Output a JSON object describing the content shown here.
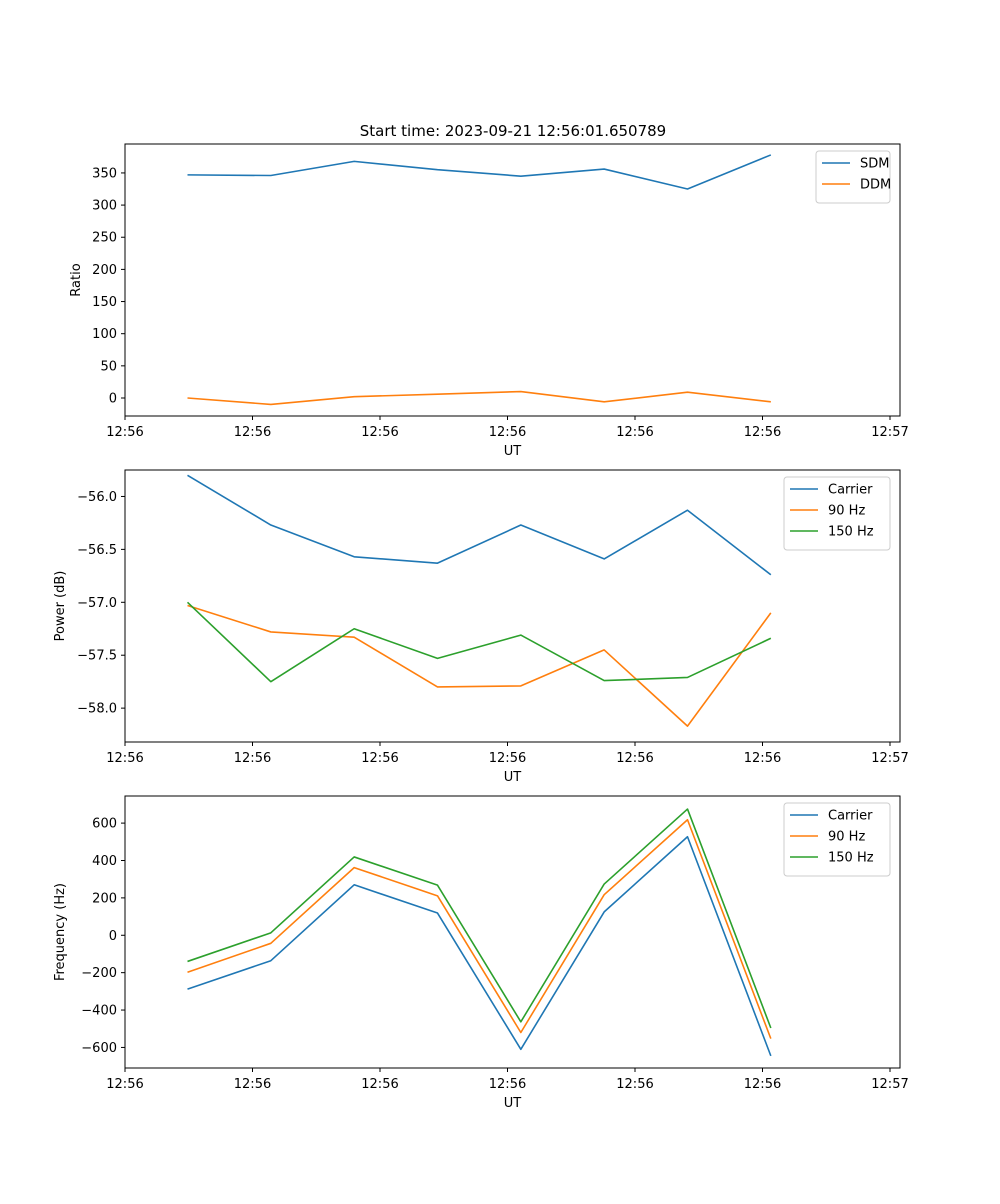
{
  "figure_title": "Start time: 2023-09-21 12:56:01.650789",
  "colors": {
    "blue": "#1f77b4",
    "orange": "#ff7f0e",
    "green": "#2ca02c"
  },
  "chart_data": [
    {
      "type": "line",
      "title": "Start time: 2023-09-21 12:56:01.650789",
      "xlabel": "UT",
      "ylabel": "Ratio",
      "x": [
        0,
        1,
        2,
        3,
        4,
        5,
        6,
        7
      ],
      "xlim": [
        -0.75,
        8.55
      ],
      "xticks": [
        -0.75,
        0.78,
        2.31,
        3.84,
        5.37,
        6.9,
        8.43
      ],
      "xtick_labels": [
        "12:56",
        "12:56",
        "12:56",
        "12:56",
        "12:56",
        "12:56",
        "12:57"
      ],
      "ylim": [
        -28,
        395
      ],
      "yticks": [
        0,
        50,
        100,
        150,
        200,
        250,
        300,
        350
      ],
      "ytick_labels": [
        "0",
        "50",
        "100",
        "150",
        "200",
        "250",
        "300",
        "350"
      ],
      "legend": "top-right",
      "series": [
        {
          "name": "SDM",
          "color": "#1f77b4",
          "values": [
            347,
            346,
            368,
            355,
            345,
            356,
            325,
            378
          ]
        },
        {
          "name": "DDM",
          "color": "#ff7f0e",
          "values": [
            0,
            -10,
            2,
            6,
            10,
            -6,
            9,
            -6
          ]
        }
      ]
    },
    {
      "type": "line",
      "title": "",
      "xlabel": "UT",
      "ylabel": "Power (dB)",
      "x": [
        0,
        1,
        2,
        3,
        4,
        5,
        6,
        7
      ],
      "xlim": [
        -0.75,
        8.55
      ],
      "xticks": [
        -0.75,
        0.78,
        2.31,
        3.84,
        5.37,
        6.9,
        8.43
      ],
      "xtick_labels": [
        "12:56",
        "12:56",
        "12:56",
        "12:56",
        "12:56",
        "12:56",
        "12:57"
      ],
      "ylim": [
        -58.32,
        -55.75
      ],
      "yticks": [
        -58.0,
        -57.5,
        -57.0,
        -56.5,
        -56.0
      ],
      "ytick_labels": [
        "−58.0",
        "−57.5",
        "−57.0",
        "−56.5",
        "−56.0"
      ],
      "legend": "top-right",
      "series": [
        {
          "name": "Carrier",
          "color": "#1f77b4",
          "values": [
            -55.8,
            -56.27,
            -56.57,
            -56.63,
            -56.27,
            -56.59,
            -56.13,
            -56.74
          ]
        },
        {
          "name": "90 Hz",
          "color": "#ff7f0e",
          "values": [
            -57.03,
            -57.28,
            -57.33,
            -57.8,
            -57.79,
            -57.45,
            -58.17,
            -57.1
          ]
        },
        {
          "name": "150 Hz",
          "color": "#2ca02c",
          "values": [
            -57.0,
            -57.75,
            -57.25,
            -57.53,
            -57.31,
            -57.74,
            -57.71,
            -57.34
          ]
        }
      ]
    },
    {
      "type": "line",
      "title": "",
      "xlabel": "UT",
      "ylabel": "Frequency (Hz)",
      "x": [
        0,
        1,
        2,
        3,
        4,
        5,
        6,
        7
      ],
      "xlim": [
        -0.75,
        8.55
      ],
      "xticks": [
        -0.75,
        0.78,
        2.31,
        3.84,
        5.37,
        6.9,
        8.43
      ],
      "xtick_labels": [
        "12:56",
        "12:56",
        "12:56",
        "12:56",
        "12:56",
        "12:56",
        "12:57"
      ],
      "ylim": [
        -710,
        745
      ],
      "yticks": [
        -600,
        -400,
        -200,
        0,
        200,
        400,
        600
      ],
      "ytick_labels": [
        "−600",
        "−400",
        "−200",
        "0",
        "200",
        "400",
        "600"
      ],
      "legend": "top-right",
      "series": [
        {
          "name": "Carrier",
          "color": "#1f77b4",
          "values": [
            -288,
            -136,
            270,
            119,
            -610,
            125,
            527,
            -645
          ]
        },
        {
          "name": "90 Hz",
          "color": "#ff7f0e",
          "values": [
            -198,
            -43,
            362,
            211,
            -520,
            217,
            618,
            -553
          ]
        },
        {
          "name": "150 Hz",
          "color": "#2ca02c",
          "values": [
            -140,
            13,
            419,
            268,
            -463,
            274,
            675,
            -496
          ]
        }
      ]
    }
  ]
}
